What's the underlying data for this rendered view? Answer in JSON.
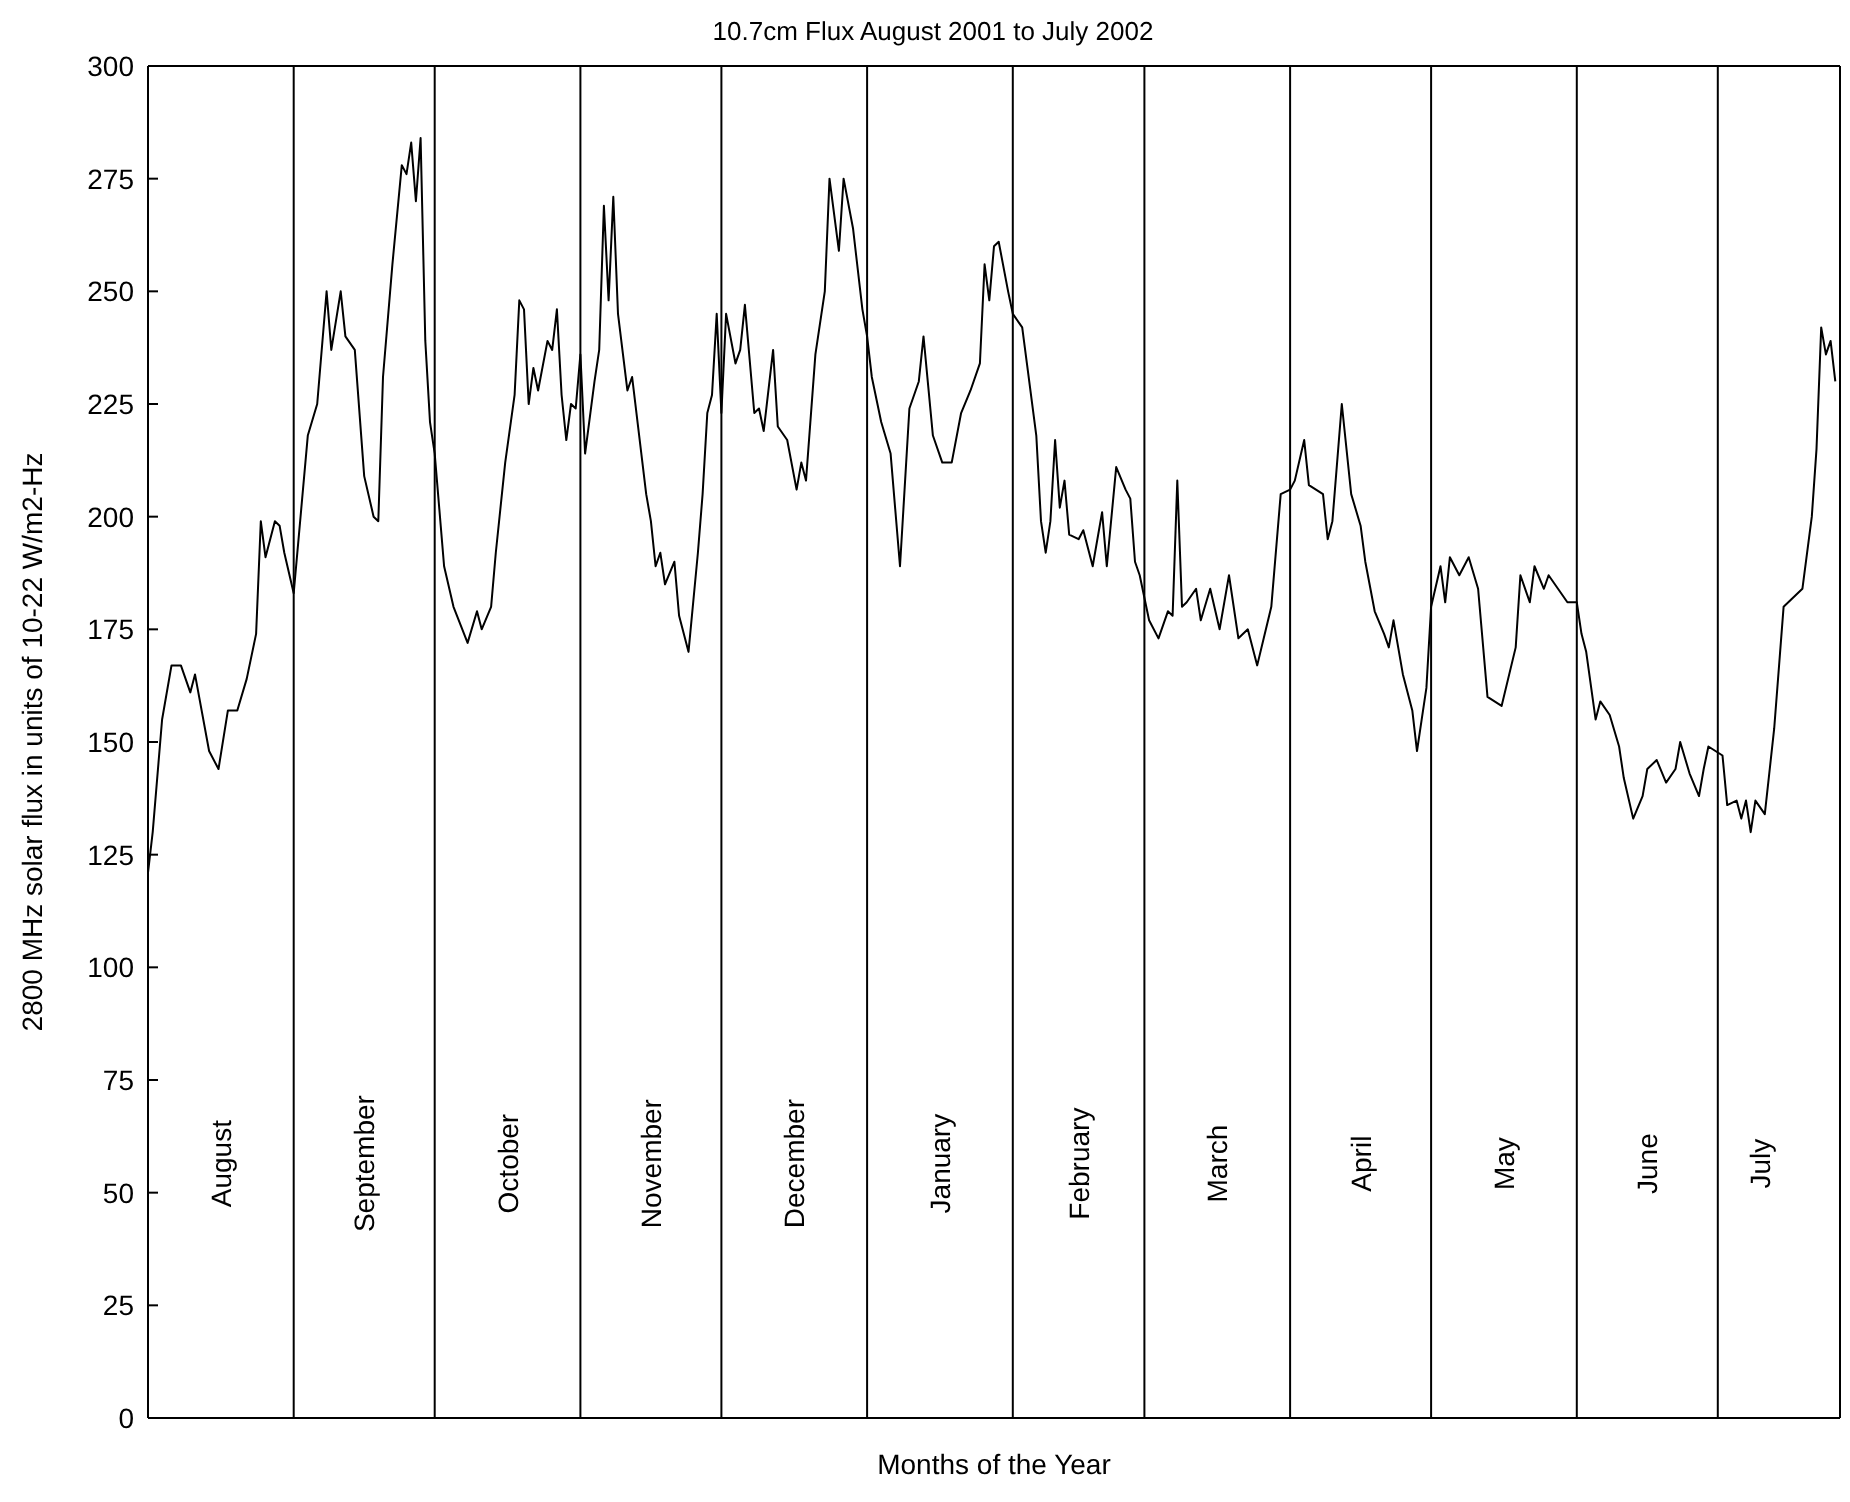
{
  "chart_data": {
    "type": "line",
    "title": "10.7cm Flux August 2001 to July 2002",
    "xlabel": "Months of the Year",
    "ylabel": "2800 MHz solar flux in units of 10-22 W/m2-Hz",
    "x": [
      "2001-08-01",
      "2001-08-02",
      "2001-08-04",
      "2001-08-06",
      "2001-08-08",
      "2001-08-10",
      "2001-08-11",
      "2001-08-14",
      "2001-08-16",
      "2001-08-18",
      "2001-08-20",
      "2001-08-22",
      "2001-08-24",
      "2001-08-25",
      "2001-08-26",
      "2001-08-28",
      "2001-08-29",
      "2001-08-30",
      "2001-09-01",
      "2001-09-04",
      "2001-09-06",
      "2001-09-08",
      "2001-09-09",
      "2001-09-11",
      "2001-09-12",
      "2001-09-14",
      "2001-09-16",
      "2001-09-18",
      "2001-09-19",
      "2001-09-20",
      "2001-09-22",
      "2001-09-24",
      "2001-09-25",
      "2001-09-26",
      "2001-09-27",
      "2001-09-28",
      "2001-09-29",
      "2001-09-30",
      "2001-10-01",
      "2001-10-03",
      "2001-10-05",
      "2001-10-08",
      "2001-10-10",
      "2001-10-11",
      "2001-10-13",
      "2001-10-14",
      "2001-10-16",
      "2001-10-18",
      "2001-10-19",
      "2001-10-20",
      "2001-10-21",
      "2001-10-22",
      "2001-10-23",
      "2001-10-25",
      "2001-10-26",
      "2001-10-27",
      "2001-10-28",
      "2001-10-29",
      "2001-10-30",
      "2001-10-31",
      "2001-11-01",
      "2001-11-02",
      "2001-11-04",
      "2001-11-05",
      "2001-11-06",
      "2001-11-07",
      "2001-11-08",
      "2001-11-09",
      "2001-11-11",
      "2001-11-12",
      "2001-11-15",
      "2001-11-16",
      "2001-11-17",
      "2001-11-18",
      "2001-11-19",
      "2001-11-21",
      "2001-11-22",
      "2001-11-24",
      "2001-11-26",
      "2001-11-27",
      "2001-11-28",
      "2001-11-29",
      "2001-11-30",
      "2001-12-01",
      "2001-12-02",
      "2001-12-04",
      "2001-12-05",
      "2001-12-06",
      "2001-12-08",
      "2001-12-09",
      "2001-12-10",
      "2001-12-12",
      "2001-12-13",
      "2001-12-15",
      "2001-12-17",
      "2001-12-18",
      "2001-12-19",
      "2001-12-21",
      "2001-12-23",
      "2001-12-24",
      "2001-12-26",
      "2001-12-27",
      "2001-12-29",
      "2001-12-31",
      "2002-01-01",
      "2002-01-02",
      "2002-01-04",
      "2002-01-06",
      "2002-01-08",
      "2002-01-10",
      "2002-01-12",
      "2002-01-13",
      "2002-01-15",
      "2002-01-17",
      "2002-01-19",
      "2002-01-21",
      "2002-01-23",
      "2002-01-25",
      "2002-01-26",
      "2002-01-27",
      "2002-01-28",
      "2002-01-29",
      "2002-01-31",
      "2002-02-01",
      "2002-02-03",
      "2002-02-04",
      "2002-02-06",
      "2002-02-07",
      "2002-02-08",
      "2002-02-09",
      "2002-02-10",
      "2002-02-11",
      "2002-02-12",
      "2002-02-13",
      "2002-02-15",
      "2002-02-16",
      "2002-02-18",
      "2002-02-20",
      "2002-02-21",
      "2002-02-23",
      "2002-02-25",
      "2002-02-26",
      "2002-02-27",
      "2002-02-28",
      "2002-03-02",
      "2002-03-04",
      "2002-03-06",
      "2002-03-07",
      "2002-03-08",
      "2002-03-09",
      "2002-03-10",
      "2002-03-12",
      "2002-03-13",
      "2002-03-15",
      "2002-03-17",
      "2002-03-19",
      "2002-03-21",
      "2002-03-23",
      "2002-03-25",
      "2002-03-28",
      "2002-03-30",
      "2002-04-01",
      "2002-04-02",
      "2002-04-04",
      "2002-04-05",
      "2002-04-08",
      "2002-04-09",
      "2002-04-10",
      "2002-04-12",
      "2002-04-14",
      "2002-04-16",
      "2002-04-17",
      "2002-04-19",
      "2002-04-21",
      "2002-04-22",
      "2002-04-23",
      "2002-04-25",
      "2002-04-27",
      "2002-04-28",
      "2002-04-29",
      "2002-04-30",
      "2002-05-01",
      "2002-05-03",
      "2002-05-04",
      "2002-05-05",
      "2002-05-07",
      "2002-05-09",
      "2002-05-11",
      "2002-05-13",
      "2002-05-16",
      "2002-05-19",
      "2002-05-20",
      "2002-05-22",
      "2002-05-23",
      "2002-05-25",
      "2002-05-26",
      "2002-05-28",
      "2002-05-30",
      "2002-05-31",
      "2002-06-01",
      "2002-06-02",
      "2002-06-03",
      "2002-06-05",
      "2002-06-06",
      "2002-06-08",
      "2002-06-10",
      "2002-06-11",
      "2002-06-13",
      "2002-06-15",
      "2002-06-16",
      "2002-06-18",
      "2002-06-20",
      "2002-06-22",
      "2002-06-23",
      "2002-06-25",
      "2002-06-27",
      "2002-06-28",
      "2002-06-29",
      "2002-07-02",
      "2002-07-03",
      "2002-07-05",
      "2002-07-06",
      "2002-07-07",
      "2002-07-08",
      "2002-07-09",
      "2002-07-11",
      "2002-07-13",
      "2002-07-15",
      "2002-07-17",
      "2002-07-19",
      "2002-07-21",
      "2002-07-22",
      "2002-07-23",
      "2002-07-24",
      "2002-07-25",
      "2002-07-26"
    ],
    "series": [
      {
        "color": "#000000",
        "values": [
          121,
          130,
          155,
          167,
          167,
          161,
          165,
          148,
          144,
          157,
          157,
          164,
          174,
          199,
          191,
          199,
          198,
          192,
          183,
          218,
          225,
          250,
          237,
          250,
          240,
          237,
          209,
          200,
          199,
          231,
          256,
          278,
          276,
          283,
          270,
          284,
          239,
          221,
          214,
          189,
          180,
          172,
          179,
          175,
          180,
          192,
          212,
          227,
          248,
          246,
          225,
          233,
          228,
          239,
          237,
          246,
          227,
          217,
          225,
          224,
          236,
          214,
          230,
          237,
          269,
          248,
          271,
          245,
          228,
          231,
          205,
          199,
          189,
          192,
          185,
          190,
          178,
          170,
          192,
          205,
          223,
          227,
          245,
          223,
          245,
          234,
          237,
          247,
          223,
          224,
          219,
          237,
          220,
          217,
          206,
          212,
          208,
          236,
          250,
          275,
          259,
          275,
          264,
          246,
          240,
          231,
          221,
          214,
          189,
          224,
          230,
          240,
          218,
          212,
          212,
          223,
          228,
          234,
          256,
          248,
          260,
          261,
          250,
          245,
          242,
          234,
          218,
          199,
          192,
          199,
          217,
          202,
          208,
          196,
          195,
          197,
          189,
          201,
          189,
          211,
          206,
          204,
          190,
          187,
          177,
          173,
          179,
          178,
          208,
          180,
          181,
          184,
          177,
          184,
          175,
          187,
          173,
          175,
          167,
          180,
          205,
          206,
          208,
          217,
          207,
          205,
          195,
          199,
          225,
          205,
          198,
          190,
          179,
          174,
          171,
          177,
          165,
          157,
          148,
          155,
          162,
          180,
          189,
          181,
          191,
          187,
          191,
          184,
          160,
          158,
          171,
          187,
          181,
          189,
          184,
          187,
          184,
          181,
          181,
          181,
          174,
          170,
          155,
          159,
          156,
          149,
          142,
          133,
          138,
          144,
          146,
          141,
          144,
          150,
          143,
          138,
          144,
          149,
          147,
          136,
          137,
          133,
          137,
          130,
          137,
          134,
          153,
          180,
          182,
          184,
          200,
          215,
          242,
          236,
          239,
          230
        ]
      }
    ],
    "xlim": [
      "2001-08-01",
      "2002-07-27"
    ],
    "ylim": [
      0,
      300
    ],
    "yticks": [
      0,
      25,
      50,
      75,
      100,
      125,
      150,
      175,
      200,
      225,
      250,
      275,
      300
    ],
    "marker": "none",
    "xticks": [
      {
        "value": "2001-08-16T12:00",
        "label": "August"
      },
      {
        "value": "2001-09-16",
        "label": "September"
      },
      {
        "value": "2001-10-16T12:00",
        "label": "October"
      },
      {
        "value": "2001-11-16",
        "label": "November"
      },
      {
        "value": "2001-12-16T12:00",
        "label": "December"
      },
      {
        "value": "2002-01-16T12:00",
        "label": "January"
      },
      {
        "value": "2002-02-15",
        "label": "February"
      },
      {
        "value": "2002-03-16T12:00",
        "label": "March"
      },
      {
        "value": "2002-04-16",
        "label": "April"
      },
      {
        "value": "2002-05-16T12:00",
        "label": "May"
      },
      {
        "value": "2002-06-16",
        "label": "June"
      },
      {
        "value": "2002-07-10",
        "label": "July"
      }
    ],
    "ref_lines": [
      {
        "axis": "x",
        "value": "2001-09-01"
      },
      {
        "axis": "x",
        "value": "2001-10-01"
      },
      {
        "axis": "x",
        "value": "2001-11-01"
      },
      {
        "axis": "x",
        "value": "2001-12-01"
      },
      {
        "axis": "x",
        "value": "2002-01-01"
      },
      {
        "axis": "x",
        "value": "2002-02-01"
      },
      {
        "axis": "x",
        "value": "2002-03-01"
      },
      {
        "axis": "x",
        "value": "2002-04-01"
      },
      {
        "axis": "x",
        "value": "2002-05-01"
      },
      {
        "axis": "x",
        "value": "2002-06-01"
      },
      {
        "axis": "x",
        "value": "2002-07-01"
      }
    ]
  }
}
